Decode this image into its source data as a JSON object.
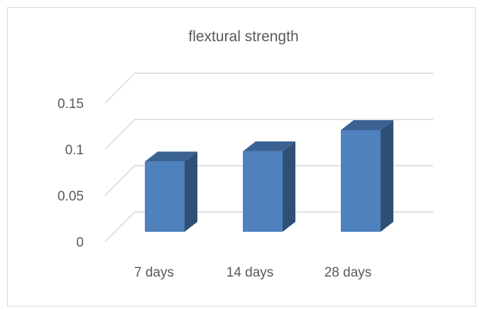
{
  "chart_data": {
    "type": "bar",
    "title": "flextural strength",
    "categories": [
      "7 days",
      "14 days",
      "28 days"
    ],
    "values": [
      0.076,
      0.087,
      0.11
    ],
    "ylim": [
      0,
      0.15
    ],
    "yticks": [
      "0",
      "0.05",
      "0.1",
      "0.15"
    ],
    "grid": true,
    "legend": "none",
    "style": "3d-column",
    "colors": {
      "bar_front": "#4f81bd",
      "bar_side": "#2f4f75",
      "bar_top": "#3a6394",
      "grid": "#d9d9d9",
      "text": "#595959",
      "frame": "#d9d9d9"
    }
  }
}
